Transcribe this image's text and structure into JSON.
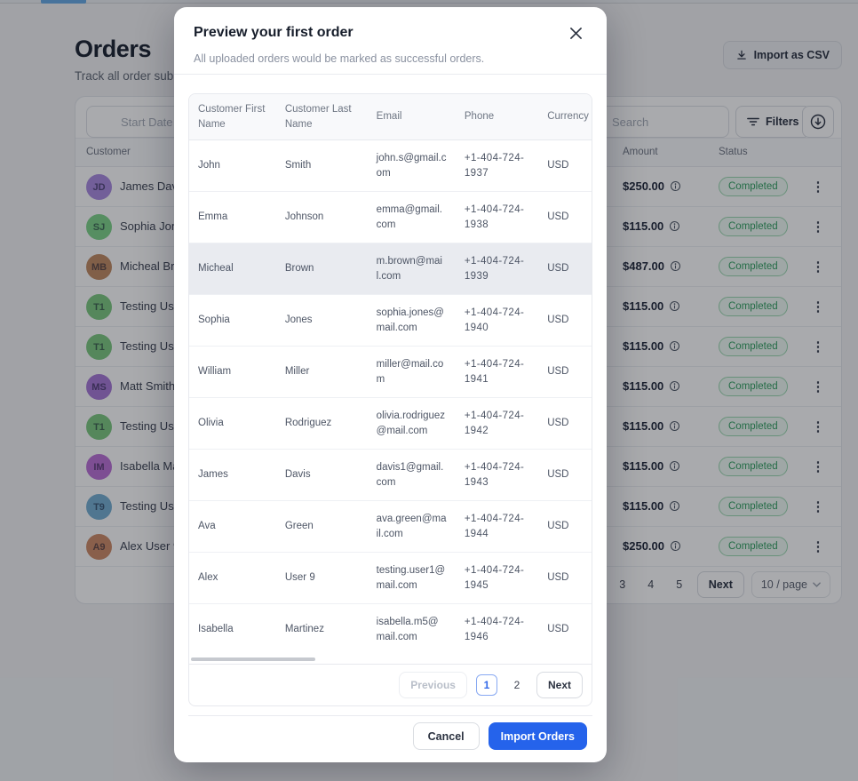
{
  "icons": {
    "kebab": "⋮",
    "close": "✕"
  },
  "colors": {
    "accent": "#2563eb",
    "status_green": "#2f9e5f",
    "active_nav": "#66aae4"
  },
  "page": {
    "title": "Orders",
    "subtitle": "Track all order submissions",
    "import_csv_label": "Import as CSV",
    "start_date_placeholder": "Start Date",
    "search_placeholder": "Search",
    "filters_label": "Filters",
    "columns": {
      "customer": "Customer",
      "amount": "Amount",
      "status": "Status"
    },
    "rows": [
      {
        "initials": "JD",
        "name": "James Davis",
        "amount": "$250.00",
        "status": "Completed",
        "avatar_color": "#a98ae0"
      },
      {
        "initials": "SJ",
        "name": "Sophia Jones",
        "amount": "$115.00",
        "status": "Completed",
        "avatar_color": "#7dd489"
      },
      {
        "initials": "MB",
        "name": "Micheal Brown",
        "amount": "$487.00",
        "status": "Completed",
        "avatar_color": "#c08a62"
      },
      {
        "initials": "T1",
        "name": "Testing User 1",
        "amount": "$115.00",
        "status": "Completed",
        "avatar_color": "#7cc97f"
      },
      {
        "initials": "T1",
        "name": "Testing User 1",
        "amount": "$115.00",
        "status": "Completed",
        "avatar_color": "#7cc97f"
      },
      {
        "initials": "MS",
        "name": "Matt Smith",
        "amount": "$115.00",
        "status": "Completed",
        "avatar_color": "#a678d6"
      },
      {
        "initials": "T1",
        "name": "Testing User 1",
        "amount": "$115.00",
        "status": "Completed",
        "avatar_color": "#7cc97f"
      },
      {
        "initials": "IM",
        "name": "Isabella Martinez",
        "amount": "$115.00",
        "status": "Completed",
        "avatar_color": "#bb6fd6"
      },
      {
        "initials": "T9",
        "name": "Testing User 9",
        "amount": "$115.00",
        "status": "Completed",
        "avatar_color": "#74aed2"
      },
      {
        "initials": "A9",
        "name": "Alex User 9",
        "amount": "$250.00",
        "status": "Completed",
        "avatar_color": "#ce8a66"
      }
    ],
    "pagination": {
      "pages": [
        "1",
        "2",
        "3",
        "4",
        "5"
      ],
      "active": "1",
      "next_label": "Next",
      "page_size_label": "10 / page"
    }
  },
  "modal": {
    "title": "Preview your first order",
    "subtitle": "All uploaded orders would be marked as successful orders.",
    "table": {
      "headers": [
        "Customer First Name",
        "Customer Last Name",
        "Email",
        "Phone",
        "Currency"
      ],
      "highlighted_row_index": 2,
      "rows": [
        {
          "first": "John",
          "last": "Smith",
          "email": "john.s@gmail.com",
          "phone": "+1-404-724-1937",
          "currency": "USD"
        },
        {
          "first": "Emma",
          "last": "Johnson",
          "email": "emma@gmail.com",
          "phone": "+1-404-724-1938",
          "currency": "USD"
        },
        {
          "first": "Micheal",
          "last": "Brown",
          "email": "m.brown@mail.com",
          "phone": "+1-404-724-1939",
          "currency": "USD"
        },
        {
          "first": "Sophia",
          "last": "Jones",
          "email": "sophia.jones@mail.com",
          "phone": "+1-404-724-1940",
          "currency": "USD"
        },
        {
          "first": "William",
          "last": "Miller",
          "email": "miller@mail.com",
          "phone": "+1-404-724-1941",
          "currency": "USD"
        },
        {
          "first": "Olivia",
          "last": "Rodriguez",
          "email": "olivia.rodriguez@mail.com",
          "phone": "+1-404-724-1942",
          "currency": "USD"
        },
        {
          "first": "James",
          "last": "Davis",
          "email": "davis1@gmail.com",
          "phone": "+1-404-724-1943",
          "currency": "USD"
        },
        {
          "first": "Ava",
          "last": "Green",
          "email": "ava.green@mail.com",
          "phone": "+1-404-724-1944",
          "currency": "USD"
        },
        {
          "first": "Alex",
          "last": "User 9",
          "email": "testing.user1@mail.com",
          "phone": "+1-404-724-1945",
          "currency": "USD"
        },
        {
          "first": "Isabella",
          "last": "Martinez",
          "email": "isabella.m5@mail.com",
          "phone": "+1-404-724-1946",
          "currency": "USD"
        }
      ]
    },
    "pagination": {
      "previous_label": "Previous",
      "pages": [
        "1",
        "2"
      ],
      "active": "1",
      "next_label": "Next"
    },
    "footer": {
      "cancel_label": "Cancel",
      "submit_label": "Import Orders"
    }
  }
}
